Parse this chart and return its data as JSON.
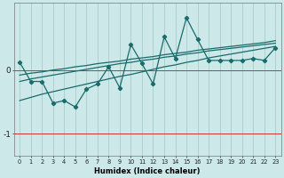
{
  "xlabel": "Humidex (Indice chaleur)",
  "background_color": "#cce8e8",
  "grid_color": "#aacccc",
  "line_color": "#1a6b6b",
  "red_line_color": "#cc3333",
  "x_data": [
    0,
    1,
    2,
    3,
    4,
    5,
    6,
    7,
    8,
    9,
    10,
    11,
    12,
    13,
    14,
    15,
    16,
    17,
    18,
    19,
    20,
    21,
    22,
    23
  ],
  "y_main": [
    0.12,
    -0.18,
    -0.18,
    -0.52,
    -0.48,
    -0.58,
    -0.3,
    -0.22,
    0.05,
    -0.28,
    0.4,
    0.1,
    -0.22,
    0.52,
    0.18,
    0.82,
    0.48,
    0.15,
    0.15,
    0.15,
    0.15,
    0.18,
    0.15,
    0.35
  ],
  "y_upper": [
    -0.08,
    -0.05,
    -0.03,
    -0.0,
    0.02,
    0.05,
    0.07,
    0.1,
    0.12,
    0.14,
    0.17,
    0.19,
    0.21,
    0.24,
    0.26,
    0.28,
    0.31,
    0.33,
    0.35,
    0.37,
    0.39,
    0.41,
    0.43,
    0.46
  ],
  "y_mid": [
    -0.18,
    -0.14,
    -0.11,
    -0.08,
    -0.05,
    -0.02,
    0.01,
    0.04,
    0.07,
    0.1,
    0.12,
    0.15,
    0.17,
    0.2,
    0.22,
    0.25,
    0.27,
    0.3,
    0.32,
    0.34,
    0.36,
    0.38,
    0.4,
    0.42
  ],
  "y_lower": [
    -0.48,
    -0.43,
    -0.38,
    -0.34,
    -0.3,
    -0.26,
    -0.22,
    -0.18,
    -0.14,
    -0.1,
    -0.07,
    -0.03,
    0.01,
    0.05,
    0.08,
    0.12,
    0.15,
    0.19,
    0.22,
    0.25,
    0.28,
    0.31,
    0.34,
    0.37
  ],
  "ylim": [
    -1.35,
    1.05
  ],
  "yticks": [
    0,
    -1
  ],
  "xlim": [
    -0.5,
    23.5
  ]
}
